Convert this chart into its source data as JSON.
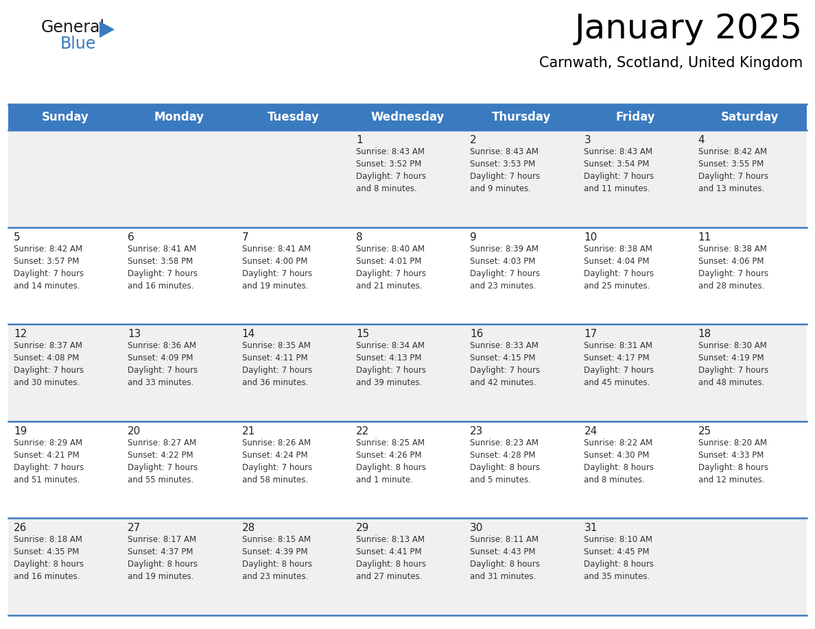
{
  "title": "January 2025",
  "subtitle": "Carnwath, Scotland, United Kingdom",
  "header_bg": "#3a7abf",
  "header_text_color": "#ffffff",
  "cell_bg_odd": "#f0f0f0",
  "cell_bg_even": "#ffffff",
  "border_color": "#3a7abf",
  "text_color": "#333333",
  "day_names": [
    "Sunday",
    "Monday",
    "Tuesday",
    "Wednesday",
    "Thursday",
    "Friday",
    "Saturday"
  ],
  "title_fontsize": 36,
  "subtitle_fontsize": 15,
  "header_fontsize": 12,
  "cell_number_fontsize": 11,
  "cell_text_fontsize": 8.5,
  "calendar": [
    [
      {
        "day": "",
        "info": ""
      },
      {
        "day": "",
        "info": ""
      },
      {
        "day": "",
        "info": ""
      },
      {
        "day": "1",
        "info": "Sunrise: 8:43 AM\nSunset: 3:52 PM\nDaylight: 7 hours\nand 8 minutes."
      },
      {
        "day": "2",
        "info": "Sunrise: 8:43 AM\nSunset: 3:53 PM\nDaylight: 7 hours\nand 9 minutes."
      },
      {
        "day": "3",
        "info": "Sunrise: 8:43 AM\nSunset: 3:54 PM\nDaylight: 7 hours\nand 11 minutes."
      },
      {
        "day": "4",
        "info": "Sunrise: 8:42 AM\nSunset: 3:55 PM\nDaylight: 7 hours\nand 13 minutes."
      }
    ],
    [
      {
        "day": "5",
        "info": "Sunrise: 8:42 AM\nSunset: 3:57 PM\nDaylight: 7 hours\nand 14 minutes."
      },
      {
        "day": "6",
        "info": "Sunrise: 8:41 AM\nSunset: 3:58 PM\nDaylight: 7 hours\nand 16 minutes."
      },
      {
        "day": "7",
        "info": "Sunrise: 8:41 AM\nSunset: 4:00 PM\nDaylight: 7 hours\nand 19 minutes."
      },
      {
        "day": "8",
        "info": "Sunrise: 8:40 AM\nSunset: 4:01 PM\nDaylight: 7 hours\nand 21 minutes."
      },
      {
        "day": "9",
        "info": "Sunrise: 8:39 AM\nSunset: 4:03 PM\nDaylight: 7 hours\nand 23 minutes."
      },
      {
        "day": "10",
        "info": "Sunrise: 8:38 AM\nSunset: 4:04 PM\nDaylight: 7 hours\nand 25 minutes."
      },
      {
        "day": "11",
        "info": "Sunrise: 8:38 AM\nSunset: 4:06 PM\nDaylight: 7 hours\nand 28 minutes."
      }
    ],
    [
      {
        "day": "12",
        "info": "Sunrise: 8:37 AM\nSunset: 4:08 PM\nDaylight: 7 hours\nand 30 minutes."
      },
      {
        "day": "13",
        "info": "Sunrise: 8:36 AM\nSunset: 4:09 PM\nDaylight: 7 hours\nand 33 minutes."
      },
      {
        "day": "14",
        "info": "Sunrise: 8:35 AM\nSunset: 4:11 PM\nDaylight: 7 hours\nand 36 minutes."
      },
      {
        "day": "15",
        "info": "Sunrise: 8:34 AM\nSunset: 4:13 PM\nDaylight: 7 hours\nand 39 minutes."
      },
      {
        "day": "16",
        "info": "Sunrise: 8:33 AM\nSunset: 4:15 PM\nDaylight: 7 hours\nand 42 minutes."
      },
      {
        "day": "17",
        "info": "Sunrise: 8:31 AM\nSunset: 4:17 PM\nDaylight: 7 hours\nand 45 minutes."
      },
      {
        "day": "18",
        "info": "Sunrise: 8:30 AM\nSunset: 4:19 PM\nDaylight: 7 hours\nand 48 minutes."
      }
    ],
    [
      {
        "day": "19",
        "info": "Sunrise: 8:29 AM\nSunset: 4:21 PM\nDaylight: 7 hours\nand 51 minutes."
      },
      {
        "day": "20",
        "info": "Sunrise: 8:27 AM\nSunset: 4:22 PM\nDaylight: 7 hours\nand 55 minutes."
      },
      {
        "day": "21",
        "info": "Sunrise: 8:26 AM\nSunset: 4:24 PM\nDaylight: 7 hours\nand 58 minutes."
      },
      {
        "day": "22",
        "info": "Sunrise: 8:25 AM\nSunset: 4:26 PM\nDaylight: 8 hours\nand 1 minute."
      },
      {
        "day": "23",
        "info": "Sunrise: 8:23 AM\nSunset: 4:28 PM\nDaylight: 8 hours\nand 5 minutes."
      },
      {
        "day": "24",
        "info": "Sunrise: 8:22 AM\nSunset: 4:30 PM\nDaylight: 8 hours\nand 8 minutes."
      },
      {
        "day": "25",
        "info": "Sunrise: 8:20 AM\nSunset: 4:33 PM\nDaylight: 8 hours\nand 12 minutes."
      }
    ],
    [
      {
        "day": "26",
        "info": "Sunrise: 8:18 AM\nSunset: 4:35 PM\nDaylight: 8 hours\nand 16 minutes."
      },
      {
        "day": "27",
        "info": "Sunrise: 8:17 AM\nSunset: 4:37 PM\nDaylight: 8 hours\nand 19 minutes."
      },
      {
        "day": "28",
        "info": "Sunrise: 8:15 AM\nSunset: 4:39 PM\nDaylight: 8 hours\nand 23 minutes."
      },
      {
        "day": "29",
        "info": "Sunrise: 8:13 AM\nSunset: 4:41 PM\nDaylight: 8 hours\nand 27 minutes."
      },
      {
        "day": "30",
        "info": "Sunrise: 8:11 AM\nSunset: 4:43 PM\nDaylight: 8 hours\nand 31 minutes."
      },
      {
        "day": "31",
        "info": "Sunrise: 8:10 AM\nSunset: 4:45 PM\nDaylight: 8 hours\nand 35 minutes."
      },
      {
        "day": "",
        "info": ""
      }
    ]
  ]
}
